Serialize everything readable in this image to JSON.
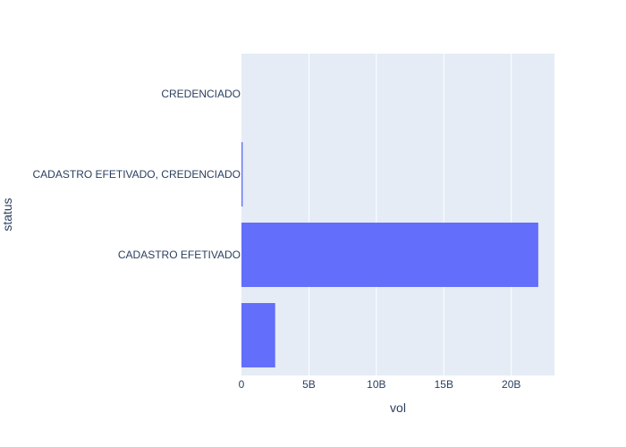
{
  "chart_data": {
    "type": "bar",
    "orientation": "horizontal",
    "categories": [
      "",
      "CADASTRO EFETIVADO",
      "CADASTRO EFETIVADO, CREDENCIADO",
      "CREDENCIADO"
    ],
    "values": [
      2500000000,
      22000000000,
      90000000,
      0
    ],
    "x_ticks": [
      {
        "value": 0,
        "label": "0"
      },
      {
        "value": 5000000000,
        "label": "5B"
      },
      {
        "value": 10000000000,
        "label": "10B"
      },
      {
        "value": 15000000000,
        "label": "15B"
      },
      {
        "value": 20000000000,
        "label": "20B"
      }
    ],
    "xlabel": "vol",
    "ylabel": "status",
    "xlim": [
      0,
      23200000000
    ],
    "grid": true,
    "colors": {
      "bar": "#636efa",
      "plot_bg": "#e5ecf6",
      "grid": "#ffffff",
      "text": "#2a3f5f"
    }
  }
}
